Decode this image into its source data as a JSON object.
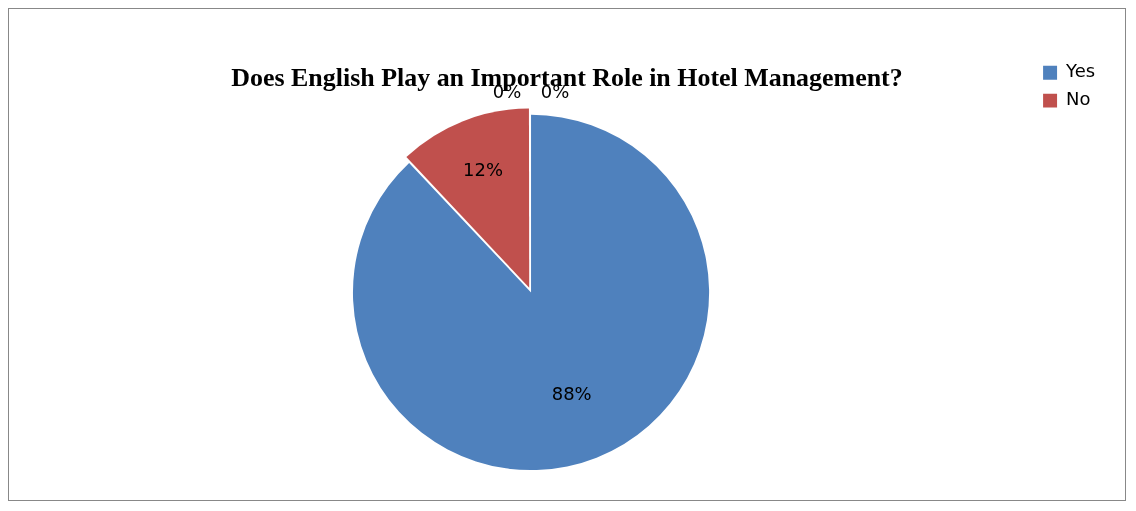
{
  "chart_data": {
    "type": "pie",
    "title": "Does English Play an Important Role in Hotel Management?",
    "categories": [
      "Yes",
      "No",
      null,
      null
    ],
    "values": [
      88,
      12,
      0,
      0
    ],
    "colors": [
      "#4f81bd",
      "#c0504d",
      "#9bbb59",
      "#8064a2"
    ],
    "value_labels": [
      "88%",
      "12%",
      "0%",
      "0%"
    ],
    "legend": "top right"
  }
}
